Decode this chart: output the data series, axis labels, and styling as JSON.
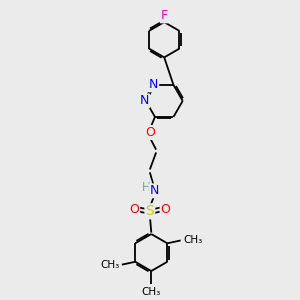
{
  "bg_color": "#ebebeb",
  "atom_colors": {
    "F": "#ff00cc",
    "N": "#0000ff",
    "O": "#ff0000",
    "S": "#cccc00",
    "H": "#7a9a9a",
    "C": "#000000"
  },
  "bond_lw": 1.3,
  "dbo": 0.055,
  "fs": 8.5,
  "xlim": [
    0,
    10
  ],
  "ylim": [
    0,
    10
  ]
}
